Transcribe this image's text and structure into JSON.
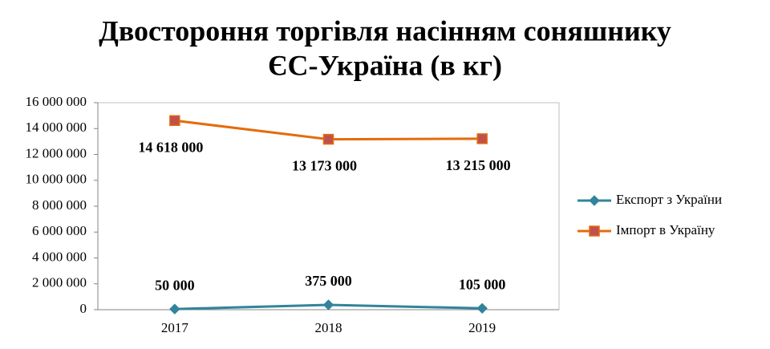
{
  "chart_data": {
    "type": "line",
    "title": [
      "Двостороння торгівля насінням соняшнику",
      "ЄС-Україна (в кг)"
    ],
    "categories": [
      "2017",
      "2018",
      "2019"
    ],
    "series": [
      {
        "name": "Експорт з України",
        "color": "#31849b",
        "marker": "diamond",
        "marker_color": "#31849b",
        "values": [
          50000,
          375000,
          105000
        ],
        "value_labels": [
          "50 000",
          "375 000",
          "105 000"
        ],
        "label_position": "above"
      },
      {
        "name": "Імпорт в Україну",
        "color": "#e46c0a",
        "marker": "square",
        "marker_color": "#c0504d",
        "values": [
          14618000,
          13173000,
          13215000
        ],
        "value_labels": [
          "14 618 000",
          "13 173 000",
          "13 215 000"
        ],
        "label_position": "below"
      }
    ],
    "ylim": [
      0,
      16000000
    ],
    "yticks": [
      0,
      {
        "value": 2000000,
        "label": "2 000 000"
      },
      {
        "value": 4000000,
        "label": "4 000 000"
      },
      {
        "value": 6000000,
        "label": "6 000 000"
      },
      {
        "value": 8000000,
        "label": "8 000 000"
      },
      {
        "value": 10000000,
        "label": "10 000 000"
      },
      {
        "value": 12000000,
        "label": "12 000 000"
      },
      {
        "value": 14000000,
        "label": "14 000 000"
      },
      {
        "value": 16000000,
        "label": "16 000 000"
      }
    ],
    "grid": false,
    "legend": "right"
  }
}
